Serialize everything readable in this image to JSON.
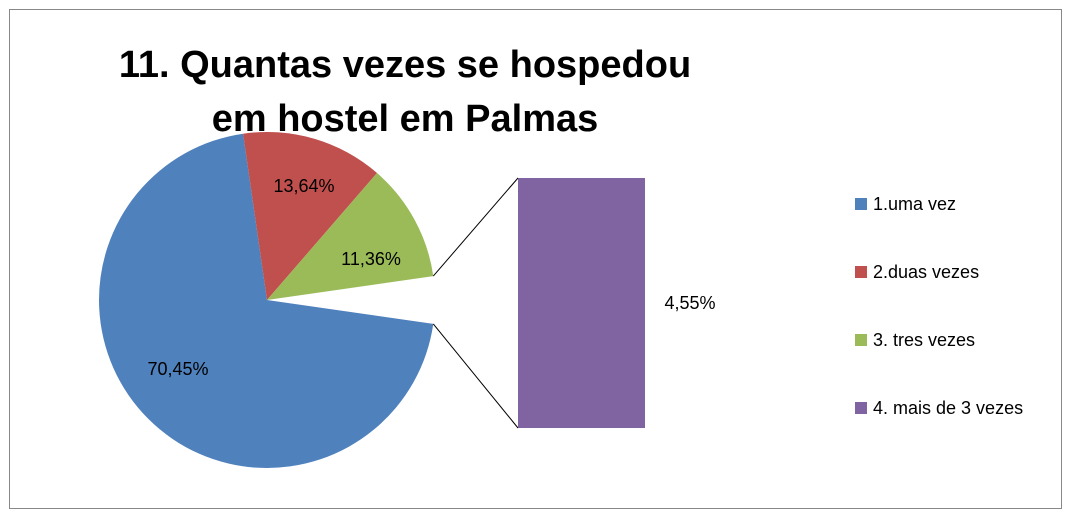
{
  "chart_data": {
    "type": "pie",
    "title": "11. Quantas vezes se hospedou em hostel em Palmas",
    "categories": [
      "1.uma vez",
      "2.duas vezes",
      "3. tres vezes",
      "4. mais de 3 vezes"
    ],
    "values": [
      70.45,
      13.64,
      11.36,
      4.55
    ],
    "value_labels": [
      "70,45%",
      "13,64%",
      "11,36%",
      "4,55%"
    ],
    "colors": [
      "#4f81bd",
      "#c0504d",
      "#9bbb59",
      "#8064a2"
    ],
    "legend": "right"
  }
}
